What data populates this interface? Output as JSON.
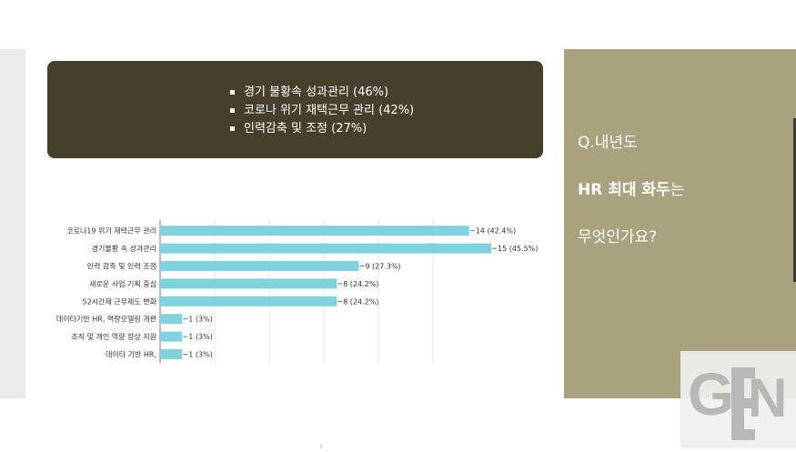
{
  "summary": {
    "items": [
      {
        "bullet": "▪",
        "text": "경기 불황속 성과관리 (46%)"
      },
      {
        "bullet": "▪",
        "text": "코로나 위기 재택근무 관리 (42%)"
      },
      {
        "bullet": "▪",
        "text": "인력감축 및 조정 (27%)"
      }
    ]
  },
  "question": {
    "line1": "Q.내년도",
    "line2_strong": "HR 최대 화두",
    "line2_rest": "는",
    "line3": "무엇인가요?"
  },
  "logo": {
    "text": "GEN"
  },
  "colors": {
    "bar": "#7fd3de",
    "summary_bg": "#45402c",
    "panel_bg": "#a8a37c"
  },
  "chart_data": {
    "type": "bar",
    "orientation": "horizontal",
    "categories": [
      "코로나19 위기 재택근무 관리",
      "경기불황 속 성과관리",
      "인력 감축 및 인력 조정",
      "새로운 사업 기획 중심",
      "52시간제 근무제도 변화",
      "데이타기반 HR, 역량모델링 개편",
      "조직 및 개인 역량 향상 지원",
      "데이타 기반 HR,"
    ],
    "values": [
      14,
      15,
      9,
      8,
      8,
      1,
      1,
      1
    ],
    "data_labels": [
      "14 (42.4%)",
      "15 (45.5%)",
      "9 (27.3%)",
      "8 (24.2%)",
      "8 (24.2%)",
      "1 (3%)",
      "1 (3%)",
      "1 (3%)"
    ],
    "xlim": [
      0,
      15
    ],
    "grid": true,
    "title": "",
    "xlabel": "",
    "ylabel": ""
  }
}
